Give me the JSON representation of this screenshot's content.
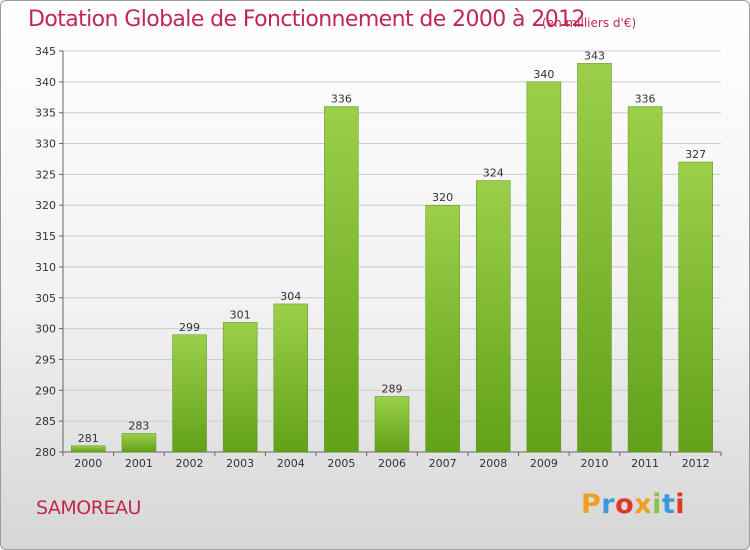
{
  "header": {
    "title": "Dotation Globale de Fonctionnement de 2000 à 2012",
    "unit": "(en milliers d'€)"
  },
  "footer": {
    "commune": "SAMOREAU",
    "logo_letters": [
      "P",
      "r",
      "o",
      "x",
      "i",
      "t",
      "i"
    ],
    "logo_colors": [
      "#f0a020",
      "#3a9ad9",
      "#e0372b",
      "#f0a020",
      "#8bc34a",
      "#3a9ad9",
      "#e0372b"
    ]
  },
  "chart_data": {
    "type": "bar",
    "title": "Dotation Globale de Fonctionnement de 2000 à 2012",
    "subtitle": "(en milliers d'€)",
    "xlabel": "",
    "ylabel": "",
    "categories": [
      "2000",
      "2001",
      "2002",
      "2003",
      "2004",
      "2005",
      "2006",
      "2007",
      "2008",
      "2009",
      "2010",
      "2011",
      "2012"
    ],
    "values": [
      281,
      283,
      299,
      301,
      304,
      336,
      289,
      320,
      324,
      340,
      343,
      336,
      327
    ],
    "ylim": [
      280,
      345
    ],
    "yticks": [
      280,
      285,
      290,
      295,
      300,
      305,
      310,
      315,
      320,
      325,
      330,
      335,
      340,
      345
    ],
    "grid": true,
    "legend": "none",
    "bar_color_top": "#9ccf4a",
    "bar_color_bottom": "#62a11a",
    "grid_color": "#cccccc"
  }
}
